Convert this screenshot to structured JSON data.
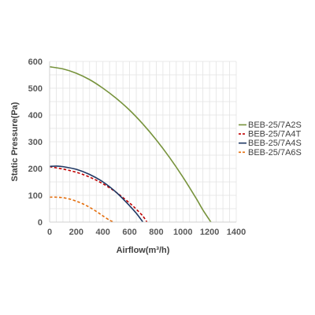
{
  "chart_data": {
    "type": "line",
    "title": "",
    "xlabel": "Airflow(m³/h)",
    "ylabel": "Static Pressure(Pa)",
    "xlim": [
      0,
      1400
    ],
    "ylim": [
      0,
      600
    ],
    "x_ticks": [
      "0",
      "200",
      "400",
      "600",
      "800",
      "1000",
      "1200",
      "1400"
    ],
    "y_ticks": [
      "0",
      "100",
      "200",
      "300",
      "400",
      "500",
      "600"
    ],
    "grid": true,
    "legend_position": "right",
    "series": [
      {
        "name": "BEB-25/7A2S",
        "color": "#77933C",
        "dash": "solid",
        "x": [
          0,
          100,
          200,
          300,
          400,
          500,
          600,
          700,
          800,
          900,
          1000,
          1100,
          1150,
          1210
        ],
        "y": [
          580,
          572,
          556,
          532,
          500,
          462,
          418,
          366,
          307,
          241,
          168,
          88,
          45,
          0
        ]
      },
      {
        "name": "BEB-25/7A4T",
        "color": "#C00000",
        "dash": "dashed",
        "x": [
          0,
          100,
          200,
          300,
          400,
          500,
          600,
          650,
          700,
          730
        ],
        "y": [
          207,
          198,
          186,
          168,
          143,
          111,
          71,
          48,
          22,
          0
        ]
      },
      {
        "name": "BEB-25/7A4S",
        "color": "#1F3864",
        "dash": "solid",
        "x": [
          0,
          50,
          100,
          200,
          300,
          400,
          500,
          600,
          650,
          700
        ],
        "y": [
          208,
          209,
          207,
          197,
          178,
          150,
          111,
          61,
          33,
          0
        ]
      },
      {
        "name": "BEB-25/7A6S",
        "color": "#E46C0A",
        "dash": "dashed",
        "x": [
          0,
          50,
          100,
          150,
          200,
          250,
          300,
          350,
          400,
          450,
          480
        ],
        "y": [
          93,
          93,
          91,
          86,
          78,
          68,
          55,
          40,
          23,
          7,
          0
        ]
      }
    ]
  }
}
